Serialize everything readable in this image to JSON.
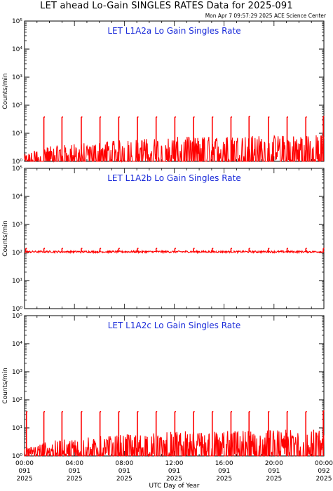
{
  "header": {
    "title": "LET ahead Lo-Gain SINGLES RATES Data for 2025-091",
    "timestamp": "Mon Apr  7 09:57:29 2025 ACE Science Center"
  },
  "colors": {
    "data": "#ff0000",
    "panel_title": "#1a2bd9",
    "axes": "#000000"
  },
  "chart_data": [
    {
      "type": "line",
      "title": "LET L1A2a Lo Gain Singles Rate",
      "ylabel": "Counts/min",
      "yscale": "log",
      "ylim": [
        1,
        100000
      ],
      "y_ticks": [
        "10⁰",
        "10¹",
        "10²",
        "10³",
        "10⁴",
        "10⁵"
      ],
      "xlim_hours": [
        0,
        24
      ],
      "baseline": 1,
      "noise_band": [
        [
          0,
          1,
          1.5
        ],
        [
          2,
          1,
          2.5
        ],
        [
          12,
          1,
          5
        ],
        [
          24,
          1,
          6
        ]
      ],
      "spikes": [
        {
          "x": 1.55,
          "y": 38
        },
        {
          "x": 3.0,
          "y": 38
        },
        {
          "x": 4.55,
          "y": 38
        },
        {
          "x": 6.05,
          "y": 38
        },
        {
          "x": 7.55,
          "y": 38
        },
        {
          "x": 9.05,
          "y": 38
        },
        {
          "x": 10.55,
          "y": 38
        },
        {
          "x": 12.05,
          "y": 38
        },
        {
          "x": 13.55,
          "y": 38
        },
        {
          "x": 15.05,
          "y": 38
        },
        {
          "x": 16.55,
          "y": 38
        },
        {
          "x": 18.0,
          "y": 40
        },
        {
          "x": 19.55,
          "y": 38
        },
        {
          "x": 21.05,
          "y": 38
        },
        {
          "x": 22.55,
          "y": 38
        },
        {
          "x": 23.95,
          "y": 40
        }
      ]
    },
    {
      "type": "line",
      "title": "LET L1A2b Lo Gain Singles Rate",
      "ylabel": "Counts/min",
      "yscale": "log",
      "ylim": [
        1,
        100000
      ],
      "y_ticks": [
        "10⁰",
        "10¹",
        "10²",
        "10³",
        "10⁴",
        "10⁵"
      ],
      "xlim_hours": [
        0,
        24
      ],
      "baseline": 105,
      "noise_band": [
        [
          0,
          98,
          115
        ],
        [
          24,
          98,
          115
        ]
      ],
      "spikes": [
        {
          "x": 0.1,
          "y": 140
        },
        {
          "x": 1.55,
          "y": 140
        },
        {
          "x": 3.0,
          "y": 140
        },
        {
          "x": 4.55,
          "y": 140
        },
        {
          "x": 6.05,
          "y": 140
        },
        {
          "x": 7.55,
          "y": 140
        },
        {
          "x": 9.05,
          "y": 140
        },
        {
          "x": 10.55,
          "y": 140
        },
        {
          "x": 12.05,
          "y": 140
        },
        {
          "x": 13.55,
          "y": 140
        },
        {
          "x": 15.05,
          "y": 140
        },
        {
          "x": 16.55,
          "y": 140
        },
        {
          "x": 18.0,
          "y": 140
        },
        {
          "x": 19.55,
          "y": 140
        },
        {
          "x": 21.05,
          "y": 140
        },
        {
          "x": 22.55,
          "y": 140
        },
        {
          "x": 23.95,
          "y": 140
        }
      ]
    },
    {
      "type": "line",
      "title": "LET L1A2c Lo Gain Singles Rate",
      "ylabel": "Counts/min",
      "yscale": "log",
      "ylim": [
        1,
        100000
      ],
      "y_ticks": [
        "10⁰",
        "10¹",
        "10²",
        "10³",
        "10⁴",
        "10⁵"
      ],
      "xlim_hours": [
        0,
        24
      ],
      "baseline": 1,
      "noise_band": [
        [
          0,
          1,
          1.5
        ],
        [
          2,
          1,
          2.5
        ],
        [
          12,
          1,
          5
        ],
        [
          24,
          1,
          6
        ]
      ],
      "spikes": [
        {
          "x": 0.15,
          "y": 38
        },
        {
          "x": 1.55,
          "y": 38
        },
        {
          "x": 3.0,
          "y": 38
        },
        {
          "x": 4.55,
          "y": 38
        },
        {
          "x": 6.05,
          "y": 38
        },
        {
          "x": 7.55,
          "y": 38
        },
        {
          "x": 9.05,
          "y": 38
        },
        {
          "x": 10.55,
          "y": 38
        },
        {
          "x": 12.05,
          "y": 38
        },
        {
          "x": 13.55,
          "y": 38
        },
        {
          "x": 15.05,
          "y": 38
        },
        {
          "x": 16.55,
          "y": 38
        },
        {
          "x": 18.0,
          "y": 38
        },
        {
          "x": 19.55,
          "y": 38
        },
        {
          "x": 21.05,
          "y": 38
        },
        {
          "x": 22.55,
          "y": 38
        },
        {
          "x": 23.95,
          "y": 40
        }
      ]
    }
  ],
  "x_axis": {
    "label": "UTC Day of Year",
    "ticks": [
      {
        "hour": 0,
        "time": "00:00",
        "doy": "091",
        "year": "2025"
      },
      {
        "hour": 4,
        "time": "04:00",
        "doy": "091",
        "year": "2025"
      },
      {
        "hour": 8,
        "time": "08:00",
        "doy": "091",
        "year": "2025"
      },
      {
        "hour": 12,
        "time": "12:00",
        "doy": "091",
        "year": "2025"
      },
      {
        "hour": 16,
        "time": "16:00",
        "doy": "091",
        "year": "2025"
      },
      {
        "hour": 20,
        "time": "20:00",
        "doy": "091",
        "year": "2025"
      },
      {
        "hour": 24,
        "time": "00:00",
        "doy": "092",
        "year": "2025"
      }
    ]
  }
}
